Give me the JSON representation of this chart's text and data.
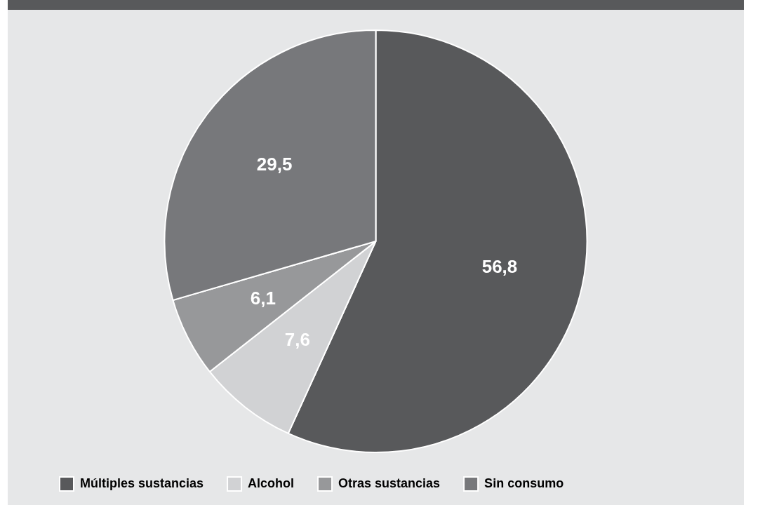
{
  "chart_data": {
    "type": "pie",
    "categories": [
      "Múltiples sustancias",
      "Alcohol",
      "Otras sustancias",
      "Sin consumo"
    ],
    "values": [
      56.8,
      7.6,
      6.1,
      29.5
    ],
    "colors": [
      "#58595b",
      "#d1d2d4",
      "#97989a",
      "#77787b"
    ],
    "value_labels": [
      "56,8",
      "7,6",
      "6,1",
      "29,5"
    ],
    "legend": "bottom"
  }
}
